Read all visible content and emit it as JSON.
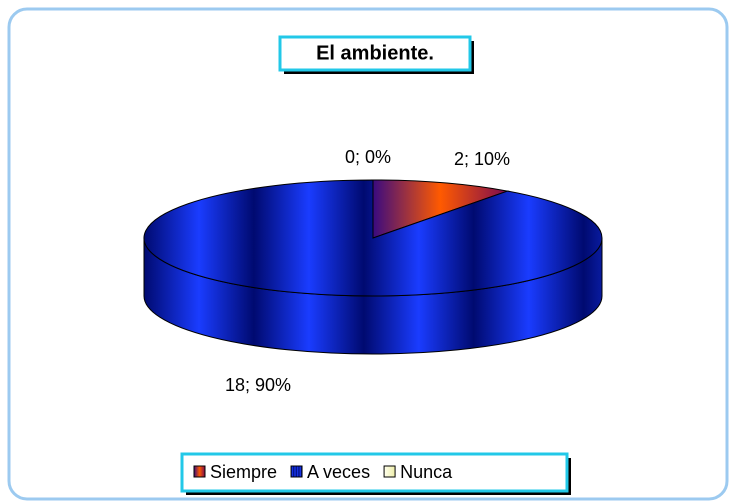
{
  "chart_data": {
    "type": "pie",
    "title": "El ambiente.",
    "series": [
      {
        "name": "Siempre",
        "color": "#7a0a50",
        "values": [
          2
        ],
        "value_labels": [
          "2; 10%"
        ]
      },
      {
        "name": "A veces",
        "color": "#0a2ad0",
        "values": [
          18
        ],
        "value_labels": [
          "18; 90%"
        ]
      },
      {
        "name": "Nunca",
        "color": "#ffffcc",
        "values": [
          0
        ],
        "value_labels": [
          "0; 0%"
        ]
      }
    ],
    "legend": "bottom"
  }
}
